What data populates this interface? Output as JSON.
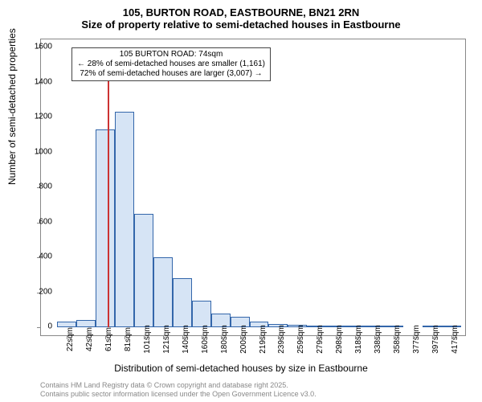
{
  "title": {
    "main": "105, BURTON ROAD, EASTBOURNE, BN21 2RN",
    "sub": "Size of property relative to semi-detached houses in Eastbourne"
  },
  "annotation": {
    "line1": "105 BURTON ROAD: 74sqm",
    "line2": "← 28% of semi-detached houses are smaller (1,161)",
    "line3": "72% of semi-detached houses are larger (3,007) →"
  },
  "chart": {
    "type": "histogram",
    "ylim": [
      0,
      1600
    ],
    "ytick_step": 200,
    "ylabel": "Number of semi-detached properties",
    "xlabel": "Distribution of semi-detached houses by size in Eastbourne",
    "bar_fill": "#d6e4f5",
    "bar_stroke": "#3366aa",
    "marker_x_value": 74,
    "marker_color": "#cc3333",
    "background_color": "#ffffff",
    "border_color": "#888888",
    "x_start": 22,
    "x_bin_width": 20,
    "bars": [
      {
        "x": 22,
        "value": 30
      },
      {
        "x": 42,
        "value": 40
      },
      {
        "x": 61,
        "value": 1130
      },
      {
        "x": 81,
        "value": 1230
      },
      {
        "x": 101,
        "value": 650
      },
      {
        "x": 121,
        "value": 400
      },
      {
        "x": 140,
        "value": 280
      },
      {
        "x": 160,
        "value": 150
      },
      {
        "x": 180,
        "value": 80
      },
      {
        "x": 200,
        "value": 60
      },
      {
        "x": 219,
        "value": 30
      },
      {
        "x": 239,
        "value": 20
      },
      {
        "x": 259,
        "value": 15
      },
      {
        "x": 279,
        "value": 10
      },
      {
        "x": 298,
        "value": 8
      },
      {
        "x": 318,
        "value": 5
      },
      {
        "x": 338,
        "value": 3
      },
      {
        "x": 358,
        "value": 2
      },
      {
        "x": 377,
        "value": 0
      },
      {
        "x": 397,
        "value": 2
      },
      {
        "x": 417,
        "value": 2
      }
    ],
    "xticks": [
      22,
      42,
      61,
      81,
      101,
      121,
      140,
      160,
      180,
      200,
      219,
      239,
      259,
      279,
      298,
      318,
      338,
      358,
      377,
      397,
      417
    ]
  },
  "footer": {
    "line1": "Contains HM Land Registry data © Crown copyright and database right 2025.",
    "line2": "Contains public sector information licensed under the Open Government Licence v3.0."
  }
}
